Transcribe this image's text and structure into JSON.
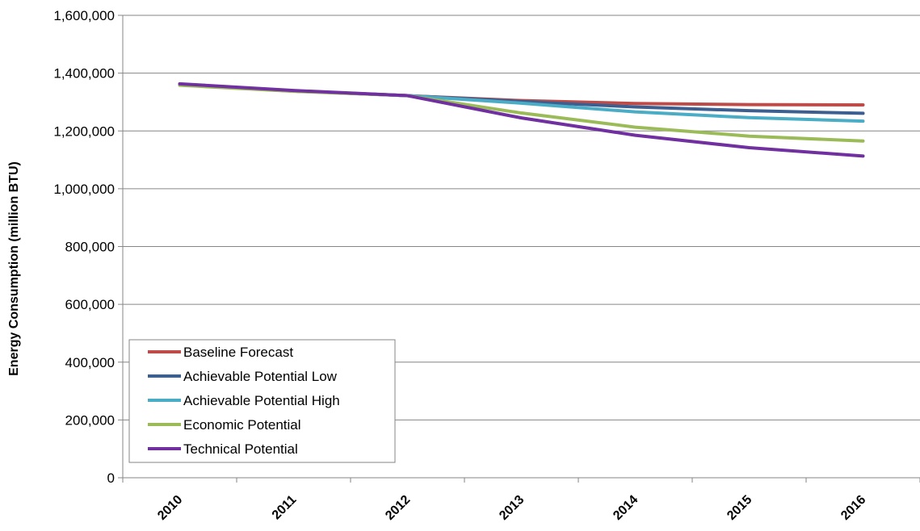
{
  "chart_data": {
    "type": "line",
    "title": "",
    "xlabel": "",
    "ylabel": "Energy Consumption (million BTU)",
    "x": [
      "2010",
      "2011",
      "2012",
      "2013",
      "2014",
      "2015",
      "2016"
    ],
    "ylim": [
      0,
      1600000
    ],
    "yticks": [
      0,
      200000,
      400000,
      600000,
      800000,
      1000000,
      1200000,
      1400000,
      1600000
    ],
    "ytick_labels": [
      "0",
      "200,000",
      "400,000",
      "600,000",
      "800,000",
      "1,000,000",
      "1,200,000",
      "1,400,000",
      "1,600,000"
    ],
    "grid": true,
    "legend_position": "bottom-left",
    "series": [
      {
        "name": "Baseline Forecast",
        "color": "#be4b48",
        "values": [
          1360000,
          1338000,
          1322000,
          1305000,
          1295000,
          1291000,
          1290000
        ]
      },
      {
        "name": "Achievable Potential Low",
        "color": "#3d5f8f",
        "values": [
          1360000,
          1338000,
          1322000,
          1302000,
          1283000,
          1270000,
          1261000
        ]
      },
      {
        "name": "Achievable Potential High",
        "color": "#4bacc6",
        "values": [
          1360000,
          1338000,
          1322000,
          1296000,
          1266000,
          1246000,
          1234000
        ]
      },
      {
        "name": "Economic Potential",
        "color": "#9bbb59",
        "values": [
          1358000,
          1337000,
          1322000,
          1262000,
          1213000,
          1182000,
          1165000
        ]
      },
      {
        "name": "Technical Potential",
        "color": "#7030a0",
        "values": [
          1363000,
          1340000,
          1322000,
          1245000,
          1185000,
          1142000,
          1113000
        ]
      }
    ]
  }
}
